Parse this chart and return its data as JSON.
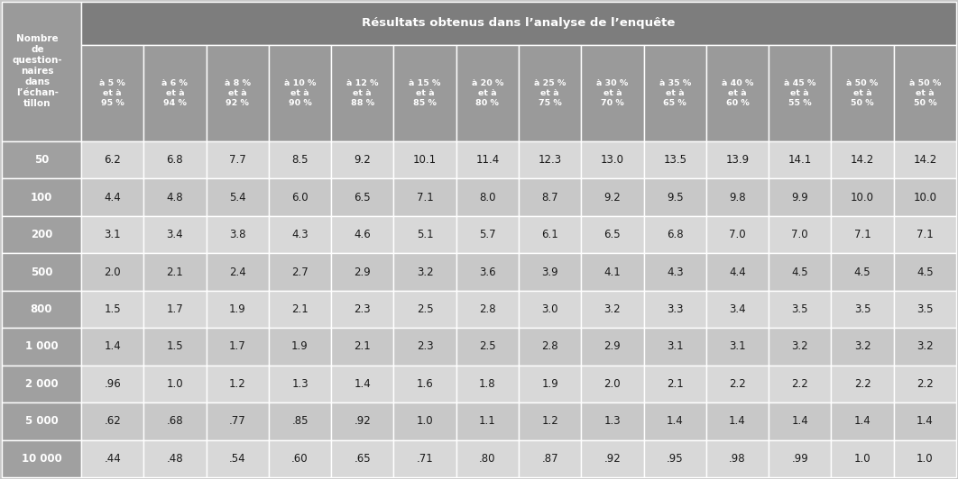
{
  "title_col": "Nombre\nde\nquestion-\nnaires\ndans\nl’échan-\ntillon",
  "header_main": "Résultats obtenus dans l’analyse de l’enquête",
  "col_headers": [
    "à 5 %\net à\n95 %",
    "à 6 %\net à\n94 %",
    "à 8 %\net à\n92 %",
    "à 10 %\net à\n90 %",
    "à 12 %\net à\n88 %",
    "à 15 %\net à\n85 %",
    "à 20 %\net à\n80 %",
    "à 25 %\net à\n75 %",
    "à 30 %\net à\n70 %",
    "à 35 %\net à\n65 %",
    "à 40 %\net à\n60 %",
    "à 45 %\net à\n55 %",
    "à 50 %\net à\n50 %",
    "à 50 %\net à\n50 %"
  ],
  "row_labels": [
    "50",
    "100",
    "200",
    "500",
    "800",
    "1 000",
    "2 000",
    "5 000",
    "10 000"
  ],
  "table_data": [
    [
      "6.2",
      "6.8",
      "7.7",
      "8.5",
      "9.2",
      "10.1",
      "11.4",
      "12.3",
      "13.0",
      "13.5",
      "13.9",
      "14.1",
      "14.2",
      "14.2"
    ],
    [
      "4.4",
      "4.8",
      "5.4",
      "6.0",
      "6.5",
      "7.1",
      "8.0",
      "8.7",
      "9.2",
      "9.5",
      "9.8",
      "9.9",
      "10.0",
      "10.0"
    ],
    [
      "3.1",
      "3.4",
      "3.8",
      "4.3",
      "4.6",
      "5.1",
      "5.7",
      "6.1",
      "6.5",
      "6.8",
      "7.0",
      "7.0",
      "7.1",
      "7.1"
    ],
    [
      "2.0",
      "2.1",
      "2.4",
      "2.7",
      "2.9",
      "3.2",
      "3.6",
      "3.9",
      "4.1",
      "4.3",
      "4.4",
      "4.5",
      "4.5",
      "4.5"
    ],
    [
      "1.5",
      "1.7",
      "1.9",
      "2.1",
      "2.3",
      "2.5",
      "2.8",
      "3.0",
      "3.2",
      "3.3",
      "3.4",
      "3.5",
      "3.5",
      "3.5"
    ],
    [
      "1.4",
      "1.5",
      "1.7",
      "1.9",
      "2.1",
      "2.3",
      "2.5",
      "2.8",
      "2.9",
      "3.1",
      "3.1",
      "3.2",
      "3.2",
      "3.2"
    ],
    [
      ".96",
      "1.0",
      "1.2",
      "1.3",
      "1.4",
      "1.6",
      "1.8",
      "1.9",
      "2.0",
      "2.1",
      "2.2",
      "2.2",
      "2.2",
      "2.2"
    ],
    [
      ".62",
      ".68",
      ".77",
      ".85",
      ".92",
      "1.0",
      "1.1",
      "1.2",
      "1.3",
      "1.4",
      "1.4",
      "1.4",
      "1.4",
      "1.4"
    ],
    [
      ".44",
      ".48",
      ".54",
      ".60",
      ".65",
      ".71",
      ".80",
      ".87",
      ".92",
      ".95",
      ".98",
      ".99",
      "1.0",
      "1.0"
    ]
  ],
  "bg_top_header": "#7d7d7d",
  "bg_subheader": "#9a9a9a",
  "bg_data_odd": "#d8d8d8",
  "bg_data_even": "#c8c8c8",
  "bg_row_label": "#a0a0a0",
  "bg_first_col_header": "#9a9a9a",
  "text_white": "#ffffff",
  "text_dark": "#1a1a1a",
  "border_color": "#ffffff",
  "fig_bg": "#c8c8c8"
}
